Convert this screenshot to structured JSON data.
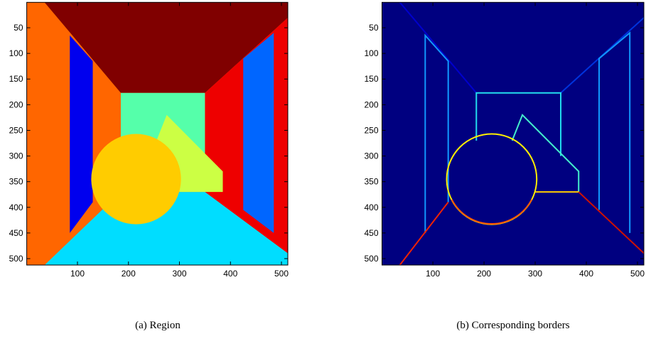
{
  "chart_data": [
    {
      "type": "image",
      "caption": "(a)  Region",
      "xlim": [
        0.5,
        512.5
      ],
      "ylim": [
        512.5,
        0.5
      ],
      "xticks": [
        100,
        200,
        300,
        400,
        500
      ],
      "yticks": [
        50,
        100,
        150,
        200,
        250,
        300,
        350,
        400,
        450,
        500
      ]
    },
    {
      "type": "image",
      "caption": "(b)  Corresponding borders",
      "xlim": [
        0.5,
        512.5
      ],
      "ylim": [
        512.5,
        0.5
      ],
      "xticks": [
        100,
        200,
        300,
        400,
        500
      ],
      "yticks": [
        50,
        100,
        150,
        200,
        250,
        300,
        350,
        400,
        450,
        500
      ]
    }
  ]
}
